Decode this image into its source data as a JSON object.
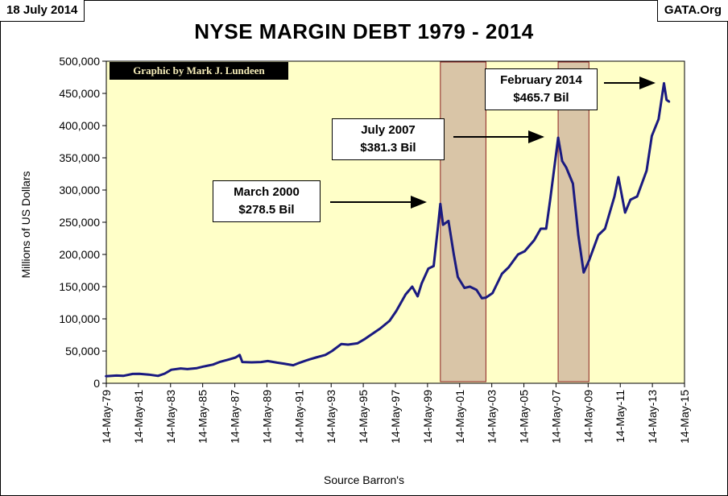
{
  "header": {
    "date": "18 July 2014",
    "source": "GATA.Org",
    "title": "NYSE MARGIN DEBT 1979 - 2014"
  },
  "credit": "Graphic by Mark J. Lundeen",
  "annotations": [
    {
      "id": "march-2000",
      "line1": "March 2000",
      "line2": "$278.5 Bil"
    },
    {
      "id": "july-2007",
      "line1": "July 2007",
      "line2": "$381.3 Bil"
    },
    {
      "id": "feb-2014",
      "line1": "February 2014",
      "line2": "$465.7 Bil"
    }
  ],
  "colors": {
    "plot_bg": "#ffffc8",
    "line": "#1a1a80",
    "shade_fill": "#d9c5a7",
    "shade_border": "#8b2020"
  },
  "chart_data": {
    "type": "line",
    "title": "NYSE MARGIN DEBT 1979 - 2014",
    "xlabel": "Source Barron's",
    "ylabel": "Millions of US Dollars",
    "ylim": [
      0,
      500000
    ],
    "xlim": [
      "1979-05-14",
      "2015-05-14"
    ],
    "grid": false,
    "yticks": [
      "0",
      "50,000",
      "100,000",
      "150,000",
      "200,000",
      "250,000",
      "300,000",
      "350,000",
      "400,000",
      "450,000",
      "500,000"
    ],
    "xticks": [
      "14-May-79",
      "14-May-81",
      "14-May-83",
      "14-May-85",
      "14-May-87",
      "14-May-89",
      "14-May-91",
      "14-May-93",
      "14-May-95",
      "14-May-97",
      "14-May-99",
      "14-May-01",
      "14-May-03",
      "14-May-05",
      "14-May-07",
      "14-May-09",
      "14-May-11",
      "14-May-13",
      "14-May-15"
    ],
    "shaded_periods": [
      {
        "start": "2000-03-01",
        "end": "2003-01-01"
      },
      {
        "start": "2007-07-01",
        "end": "2009-06-01"
      }
    ],
    "series": [
      {
        "points": [
          [
            "1979-05-01",
            11000
          ],
          [
            "1980-01-01",
            12000
          ],
          [
            "1980-06-01",
            11500
          ],
          [
            "1981-01-01",
            14500
          ],
          [
            "1981-06-01",
            14800
          ],
          [
            "1982-01-01",
            13500
          ],
          [
            "1982-08-01",
            11500
          ],
          [
            "1983-01-01",
            15000
          ],
          [
            "1983-06-01",
            21000
          ],
          [
            "1984-01-01",
            23000
          ],
          [
            "1984-06-01",
            22000
          ],
          [
            "1985-01-01",
            23500
          ],
          [
            "1985-06-01",
            26000
          ],
          [
            "1986-01-01",
            29000
          ],
          [
            "1986-06-01",
            33000
          ],
          [
            "1987-01-01",
            37000
          ],
          [
            "1987-06-01",
            40000
          ],
          [
            "1987-09-01",
            44000
          ],
          [
            "1987-11-01",
            33000
          ],
          [
            "1988-06-01",
            32500
          ],
          [
            "1989-01-01",
            33000
          ],
          [
            "1989-06-01",
            34500
          ],
          [
            "1990-01-01",
            32000
          ],
          [
            "1990-06-01",
            30500
          ],
          [
            "1991-01-01",
            28000
          ],
          [
            "1991-06-01",
            32000
          ],
          [
            "1992-01-01",
            37000
          ],
          [
            "1992-06-01",
            40000
          ],
          [
            "1993-01-01",
            44000
          ],
          [
            "1993-06-01",
            50000
          ],
          [
            "1994-01-01",
            61000
          ],
          [
            "1994-06-01",
            60000
          ],
          [
            "1995-01-01",
            62000
          ],
          [
            "1995-06-01",
            68000
          ],
          [
            "1996-01-01",
            78000
          ],
          [
            "1996-06-01",
            85000
          ],
          [
            "1997-01-01",
            97000
          ],
          [
            "1997-06-01",
            112000
          ],
          [
            "1998-01-01",
            138000
          ],
          [
            "1998-06-01",
            150000
          ],
          [
            "1998-10-01",
            135000
          ],
          [
            "1999-01-01",
            155000
          ],
          [
            "1999-06-01",
            178000
          ],
          [
            "1999-10-01",
            182000
          ],
          [
            "2000-01-01",
            240000
          ],
          [
            "2000-03-01",
            278500
          ],
          [
            "2000-05-01",
            246000
          ],
          [
            "2000-09-01",
            252000
          ],
          [
            "2001-01-01",
            200000
          ],
          [
            "2001-04-01",
            165000
          ],
          [
            "2001-09-01",
            148000
          ],
          [
            "2002-01-01",
            150000
          ],
          [
            "2002-06-01",
            145000
          ],
          [
            "2002-10-01",
            132000
          ],
          [
            "2003-01-01",
            133000
          ],
          [
            "2003-06-01",
            140000
          ],
          [
            "2004-01-01",
            170000
          ],
          [
            "2004-06-01",
            180000
          ],
          [
            "2005-01-01",
            200000
          ],
          [
            "2005-06-01",
            205000
          ],
          [
            "2006-01-01",
            222000
          ],
          [
            "2006-06-01",
            240000
          ],
          [
            "2006-10-01",
            240000
          ],
          [
            "2007-01-01",
            285000
          ],
          [
            "2007-07-01",
            381300
          ],
          [
            "2007-10-01",
            345000
          ],
          [
            "2008-01-01",
            335000
          ],
          [
            "2008-06-01",
            310000
          ],
          [
            "2008-10-01",
            230000
          ],
          [
            "2009-02-01",
            172000
          ],
          [
            "2009-06-01",
            190000
          ],
          [
            "2010-01-01",
            230000
          ],
          [
            "2010-06-01",
            240000
          ],
          [
            "2011-01-01",
            290000
          ],
          [
            "2011-04-01",
            320000
          ],
          [
            "2011-09-01",
            265000
          ],
          [
            "2012-01-01",
            285000
          ],
          [
            "2012-06-01",
            290000
          ],
          [
            "2013-01-01",
            330000
          ],
          [
            "2013-05-01",
            384000
          ],
          [
            "2013-10-01",
            410000
          ],
          [
            "2014-02-01",
            465700
          ],
          [
            "2014-04-01",
            440000
          ],
          [
            "2014-06-01",
            437000
          ]
        ]
      }
    ]
  }
}
